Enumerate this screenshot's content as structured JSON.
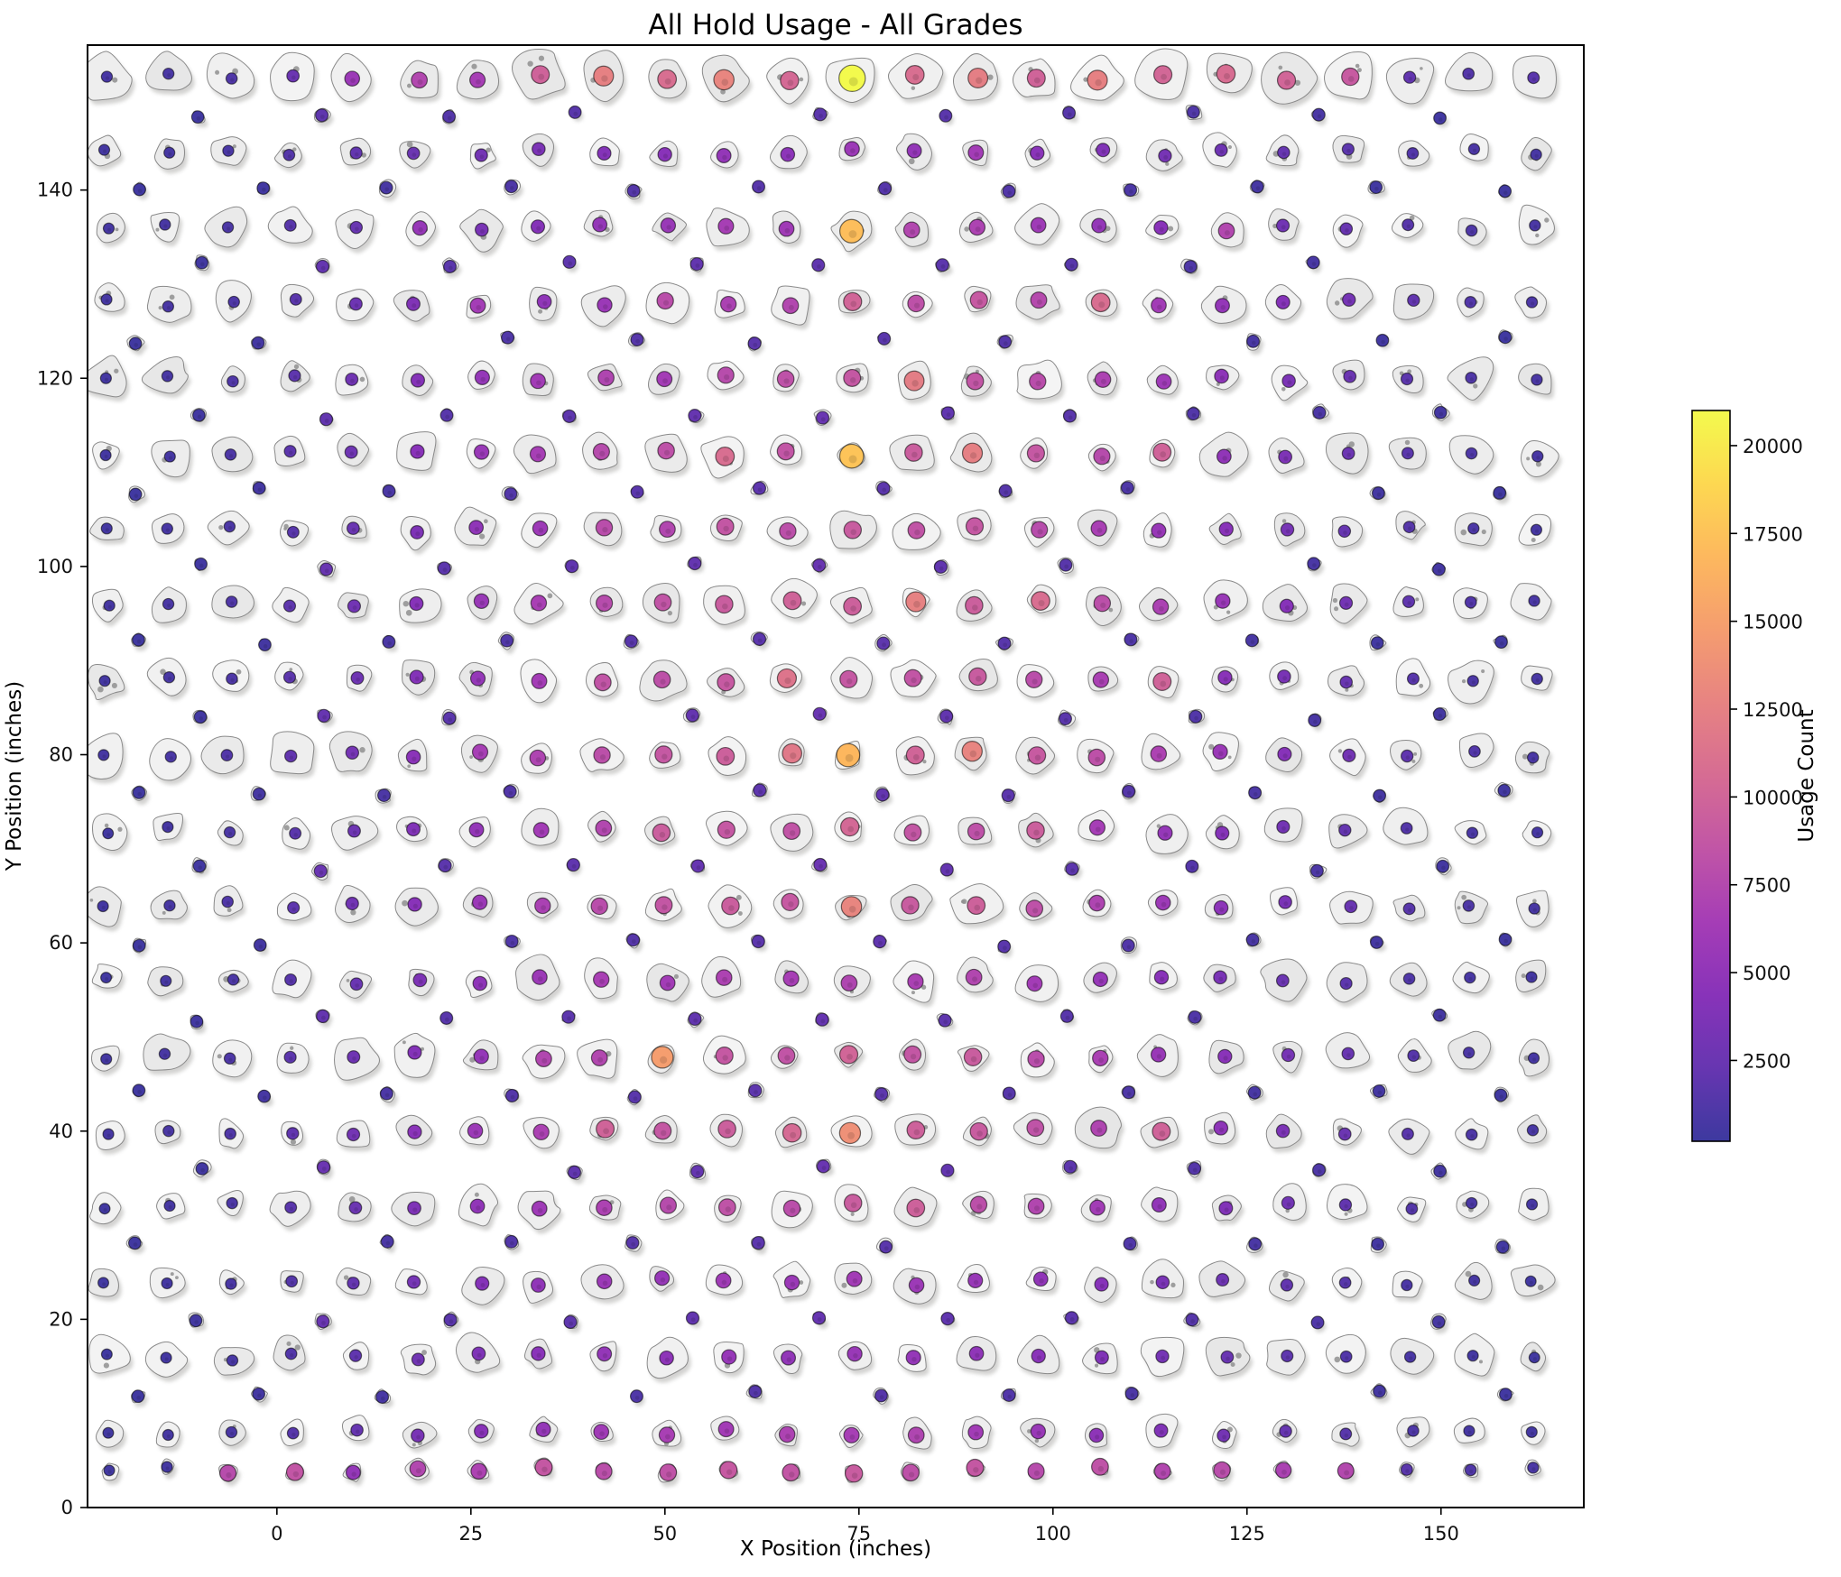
{
  "figure": {
    "background": "#ffffff",
    "spine_color": "#000000",
    "hold_fill": "#ececec",
    "hold_edge": "#8a8a8a"
  },
  "chart_data": {
    "type": "scatter",
    "title": "All Hold Usage - All Grades",
    "xlabel": "X Position (inches)",
    "ylabel": "Y Position (inches)",
    "x_ticks": [
      0,
      25,
      50,
      75,
      100,
      125,
      150
    ],
    "y_ticks": [
      0,
      20,
      40,
      60,
      80,
      100,
      120,
      140
    ],
    "xlim": [
      -24.4,
      168.4
    ],
    "ylim": [
      0,
      155.4
    ],
    "grid": false,
    "colorbar": {
      "label": "Usage Count",
      "ticks": [
        2500,
        5000,
        7500,
        10000,
        12500,
        15000,
        17500,
        20000
      ],
      "vmin": 200,
      "vmax": 21000,
      "colormap": "plasma",
      "stops": [
        "#3d399f",
        "#6736b1",
        "#8833b9",
        "#a53db6",
        "#c155a6",
        "#d66c93",
        "#e78382",
        "#f59d6f",
        "#fdb85e",
        "#fdd851",
        "#f3fa4d"
      ]
    },
    "max_point": {
      "x": 74,
      "y": 152,
      "usage": 21800
    },
    "rows": [
      {
        "y": 152,
        "x0": -22,
        "dx": 8,
        "blob": [
          25,
          31
        ],
        "usage": [
          800,
          900,
          1200,
          2600,
          5800,
          7400,
          6600,
          9800,
          12500,
          10900,
          12900,
          10400,
          21800,
          10900,
          12300,
          9900,
          12500,
          10200,
          10700,
          10100,
          9100,
          2100,
          1400,
          1700
        ]
      },
      {
        "y": 144,
        "x0": -22,
        "dx": 8,
        "blob": [
          15,
          21
        ],
        "usage": [
          600,
          700,
          900,
          1400,
          2100,
          2600,
          3100,
          3600,
          4100,
          4400,
          5200,
          4700,
          5800,
          5200,
          6300,
          4500,
          3900,
          3300,
          2800,
          2300,
          1800,
          1300,
          1000,
          800
        ]
      },
      {
        "y": 136,
        "x0": -22,
        "dx": 8,
        "blob": [
          17,
          26
        ],
        "usage": [
          700,
          800,
          1000,
          1600,
          2400,
          5400,
          3400,
          4200,
          5200,
          5600,
          6600,
          6100,
          17200,
          7400,
          7000,
          6000,
          5200,
          4400,
          7400,
          3000,
          2400,
          1600,
          1100,
          900
        ]
      },
      {
        "y": 128,
        "x0": -22,
        "dx": 8,
        "blob": [
          16,
          26
        ],
        "usage": [
          700,
          900,
          1100,
          1700,
          2700,
          3900,
          6400,
          4900,
          5700,
          8000,
          6900,
          7400,
          10100,
          8200,
          9000,
          7600,
          10800,
          6200,
          5200,
          4200,
          3200,
          2100,
          1300,
          1000
        ]
      },
      {
        "y": 120,
        "x0": -22,
        "dx": 8,
        "blob": [
          16,
          27
        ],
        "usage": [
          600,
          800,
          1200,
          1900,
          2900,
          4200,
          5300,
          6200,
          7200,
          6400,
          7800,
          8300,
          8800,
          12200,
          8600,
          7900,
          7000,
          6000,
          4800,
          3600,
          2600,
          1800,
          1200,
          900
        ]
      },
      {
        "y": 112,
        "x0": -22,
        "dx": 8,
        "blob": [
          16,
          27
        ],
        "usage": [
          600,
          700,
          1100,
          1800,
          2800,
          4400,
          5600,
          6600,
          7700,
          8300,
          10900,
          8600,
          17600,
          9400,
          12400,
          8900,
          7700,
          9900,
          5000,
          3700,
          2600,
          1700,
          1100,
          800
        ]
      },
      {
        "y": 104,
        "x0": -22,
        "dx": 8,
        "blob": [
          16,
          26
        ],
        "usage": [
          600,
          800,
          1000,
          1600,
          2500,
          3700,
          4900,
          5900,
          7900,
          7300,
          8700,
          8100,
          9200,
          8500,
          8900,
          7800,
          6700,
          5500,
          4400,
          3300,
          2300,
          1500,
          1000,
          700
        ]
      },
      {
        "y": 96,
        "x0": -22,
        "dx": 8,
        "blob": [
          17,
          27
        ],
        "usage": [
          700,
          900,
          1200,
          1900,
          3000,
          4300,
          5600,
          6700,
          7700,
          8500,
          9300,
          9900,
          9600,
          12600,
          9500,
          10900,
          8100,
          6900,
          5600,
          4300,
          3100,
          2000,
          1300,
          900
        ]
      },
      {
        "y": 88,
        "x0": -22,
        "dx": 8,
        "blob": [
          16,
          27
        ],
        "usage": [
          600,
          800,
          1100,
          1800,
          2800,
          4100,
          5300,
          6400,
          8500,
          8200,
          9000,
          11400,
          8900,
          8600,
          9200,
          8000,
          6800,
          9900,
          4500,
          3400,
          2400,
          1600,
          1000,
          800
        ]
      },
      {
        "y": 80,
        "x0": -22,
        "dx": 8,
        "blob": [
          17,
          28
        ],
        "usage": [
          700,
          900,
          1300,
          2100,
          3200,
          4600,
          6600,
          7100,
          8100,
          8900,
          9600,
          11800,
          16800,
          10000,
          12800,
          9100,
          8200,
          7000,
          5700,
          4300,
          3100,
          2000,
          1300,
          900
        ]
      },
      {
        "y": 72,
        "x0": -22,
        "dx": 8,
        "blob": [
          16,
          26
        ],
        "usage": [
          500,
          700,
          1000,
          1700,
          2700,
          4000,
          5200,
          6300,
          7400,
          9400,
          8900,
          8500,
          10300,
          8700,
          8300,
          9500,
          6500,
          5300,
          4200,
          3100,
          2200,
          1400,
          900,
          700
        ]
      },
      {
        "y": 64,
        "x0": -22,
        "dx": 8,
        "blob": [
          16,
          27
        ],
        "usage": [
          600,
          800,
          1200,
          1900,
          3000,
          4400,
          5700,
          6800,
          7900,
          8700,
          9400,
          9000,
          12900,
          9200,
          9700,
          8300,
          7100,
          5900,
          4700,
          3500,
          2500,
          1600,
          1100,
          800
        ]
      },
      {
        "y": 56,
        "x0": -22,
        "dx": 8,
        "blob": [
          16,
          26
        ],
        "usage": [
          500,
          700,
          1000,
          1600,
          2500,
          3700,
          4800,
          5800,
          6700,
          6200,
          7000,
          6600,
          7200,
          6800,
          7300,
          6300,
          5400,
          4400,
          3500,
          2600,
          1800,
          1200,
          800,
          600
        ]
      },
      {
        "y": 48,
        "x0": -22,
        "dx": 8,
        "blob": [
          16,
          27
        ],
        "usage": [
          600,
          800,
          1100,
          1800,
          2800,
          4100,
          5300,
          7300,
          7400,
          14800,
          8900,
          8500,
          10100,
          8700,
          9300,
          7900,
          6800,
          5600,
          4500,
          3300,
          2400,
          1500,
          1000,
          700
        ]
      },
      {
        "y": 40,
        "x0": -22,
        "dx": 8,
        "blob": [
          16,
          27
        ],
        "usage": [
          700,
          900,
          1200,
          2000,
          3100,
          4500,
          5800,
          6900,
          9900,
          8800,
          9500,
          10500,
          13800,
          9700,
          9200,
          8400,
          7200,
          9900,
          4800,
          3600,
          2600,
          1700,
          1100,
          800
        ]
      },
      {
        "y": 32,
        "x0": -22,
        "dx": 8,
        "blob": [
          15,
          25
        ],
        "usage": [
          500,
          700,
          1000,
          1700,
          2600,
          3800,
          5000,
          6000,
          7000,
          7700,
          8400,
          8000,
          9300,
          9700,
          8100,
          7300,
          6200,
          5100,
          4000,
          3000,
          2100,
          1400,
          900,
          700
        ]
      },
      {
        "y": 24,
        "x0": -22,
        "dx": 8,
        "blob": [
          15,
          25
        ],
        "usage": [
          500,
          600,
          900,
          1400,
          2200,
          3200,
          4200,
          5000,
          5800,
          5400,
          6100,
          5700,
          6300,
          5900,
          5500,
          5000,
          4300,
          3500,
          2800,
          2100,
          1500,
          1000,
          700,
          500
        ]
      },
      {
        "y": 16,
        "x0": -22,
        "dx": 8,
        "blob": [
          16,
          26
        ],
        "usage": [
          400,
          600,
          800,
          1300,
          2000,
          2900,
          3800,
          4500,
          5200,
          4800,
          5400,
          5100,
          5600,
          5300,
          4900,
          4500,
          3900,
          3200,
          2500,
          1900,
          1300,
          900,
          600,
          500
        ]
      },
      {
        "y": 8,
        "x0": -22,
        "dx": 8,
        "blob": [
          14,
          20
        ],
        "usage": [
          500,
          700,
          900,
          1500,
          2300,
          3400,
          4400,
          5300,
          6100,
          6700,
          6300,
          7000,
          6600,
          7200,
          6200,
          5600,
          4800,
          3900,
          3100,
          2300,
          1600,
          1100,
          700,
          600
        ]
      },
      {
        "y": 4,
        "x0": -22,
        "dx": 8,
        "blob": [
          9,
          13
        ],
        "usage": [
          500,
          600,
          7800,
          8600,
          5200,
          7400,
          7000,
          8800,
          8000,
          8400,
          9000,
          8600,
          9200,
          8200,
          8800,
          7800,
          8400,
          7400,
          7900,
          6900,
          7500,
          1700,
          1200,
          900
        ]
      }
    ],
    "foot_holds": [
      {
        "y": 12,
        "xs": [
          -18,
          -2,
          14,
          46,
          62,
          78,
          94,
          110,
          142,
          158
        ],
        "usage": [
          400,
          600,
          800,
          1200,
          1400,
          1500,
          1300,
          1000,
          600,
          500
        ]
      },
      {
        "y": 20,
        "xs": [
          -10,
          6,
          22,
          38,
          54,
          70,
          86,
          102,
          118,
          134,
          150
        ],
        "usage": [
          500,
          2400,
          1700,
          1900,
          2100,
          2300,
          2000,
          1800,
          1500,
          1200,
          700
        ]
      },
      {
        "y": 28,
        "xs": [
          -18,
          14,
          30,
          46,
          62,
          78,
          110,
          126,
          142,
          158
        ],
        "usage": [
          400,
          900,
          1300,
          1600,
          1800,
          1700,
          1200,
          900,
          600,
          500
        ]
      },
      {
        "y": 36,
        "xs": [
          -10,
          6,
          38,
          54,
          70,
          86,
          102,
          118,
          134,
          150
        ],
        "usage": [
          500,
          2600,
          2000,
          2200,
          2500,
          2100,
          1800,
          1400,
          1100,
          600
        ]
      },
      {
        "y": 44,
        "xs": [
          -18,
          -2,
          14,
          30,
          46,
          62,
          78,
          94,
          110,
          126,
          142,
          158
        ],
        "usage": [
          400,
          700,
          1000,
          1400,
          1700,
          1900,
          1800,
          1500,
          1100,
          800,
          600,
          400
        ]
      },
      {
        "y": 52,
        "xs": [
          -10,
          6,
          22,
          38,
          54,
          70,
          86,
          102,
          118,
          150
        ],
        "usage": [
          500,
          2200,
          1600,
          1800,
          2100,
          2300,
          1900,
          1600,
          1200,
          600
        ]
      },
      {
        "y": 60,
        "xs": [
          -18,
          -2,
          30,
          46,
          62,
          78,
          94,
          110,
          126,
          142,
          158
        ],
        "usage": [
          400,
          600,
          1200,
          1500,
          1800,
          2000,
          1700,
          1300,
          900,
          600,
          400
        ]
      },
      {
        "y": 68,
        "xs": [
          -10,
          6,
          22,
          38,
          54,
          70,
          86,
          102,
          118,
          134,
          150
        ],
        "usage": [
          500,
          2500,
          1800,
          2000,
          2300,
          2600,
          2200,
          1800,
          1400,
          1000,
          600
        ]
      },
      {
        "y": 76,
        "xs": [
          -18,
          -2,
          14,
          30,
          62,
          78,
          94,
          110,
          126,
          142,
          158
        ],
        "usage": [
          400,
          700,
          1000,
          1300,
          1900,
          2100,
          1800,
          1400,
          1000,
          700,
          500
        ]
      },
      {
        "y": 84,
        "xs": [
          -10,
          6,
          22,
          54,
          70,
          86,
          102,
          118,
          134,
          150
        ],
        "usage": [
          500,
          2300,
          1700,
          2200,
          2500,
          2100,
          1700,
          1300,
          900,
          600
        ]
      },
      {
        "y": 92,
        "xs": [
          -18,
          -2,
          14,
          30,
          46,
          62,
          78,
          94,
          110,
          126,
          142,
          158
        ],
        "usage": [
          400,
          600,
          900,
          1200,
          1600,
          1800,
          1900,
          1600,
          1200,
          800,
          500,
          400
        ]
      },
      {
        "y": 100,
        "xs": [
          -10,
          6,
          22,
          38,
          54,
          70,
          86,
          102,
          134,
          150
        ],
        "usage": [
          500,
          2400,
          1800,
          2000,
          2200,
          2400,
          2000,
          1600,
          900,
          600
        ]
      },
      {
        "y": 108,
        "xs": [
          -18,
          -2,
          14,
          30,
          46,
          62,
          78,
          94,
          110,
          142,
          158
        ],
        "usage": [
          400,
          600,
          900,
          1300,
          1700,
          1900,
          1800,
          1500,
          1100,
          600,
          400
        ]
      },
      {
        "y": 116,
        "xs": [
          -10,
          6,
          22,
          38,
          54,
          70,
          86,
          102,
          118,
          134,
          150
        ],
        "usage": [
          500,
          2100,
          1600,
          1900,
          2300,
          2500,
          2000,
          1700,
          1300,
          1000,
          600
        ]
      },
      {
        "y": 124,
        "xs": [
          -18,
          -2,
          30,
          46,
          62,
          78,
          94,
          126,
          142,
          158
        ],
        "usage": [
          400,
          600,
          1200,
          1500,
          1800,
          1700,
          1400,
          800,
          500,
          400
        ]
      },
      {
        "y": 132,
        "xs": [
          -10,
          6,
          22,
          38,
          54,
          70,
          86,
          102,
          118,
          134
        ],
        "usage": [
          500,
          2200,
          1700,
          1900,
          2100,
          2000,
          1800,
          1500,
          1100,
          800
        ]
      },
      {
        "y": 140,
        "xs": [
          -18,
          -2,
          14,
          30,
          46,
          62,
          78,
          94,
          110,
          126,
          142,
          158
        ],
        "usage": [
          400,
          500,
          800,
          1100,
          1400,
          1600,
          1500,
          1300,
          1000,
          700,
          500,
          400
        ]
      },
      {
        "y": 148,
        "xs": [
          -10,
          6,
          22,
          38,
          70,
          86,
          102,
          118,
          134,
          150
        ],
        "usage": [
          400,
          1900,
          1400,
          1600,
          1800,
          1700,
          1500,
          1200,
          900,
          500
        ]
      }
    ]
  }
}
